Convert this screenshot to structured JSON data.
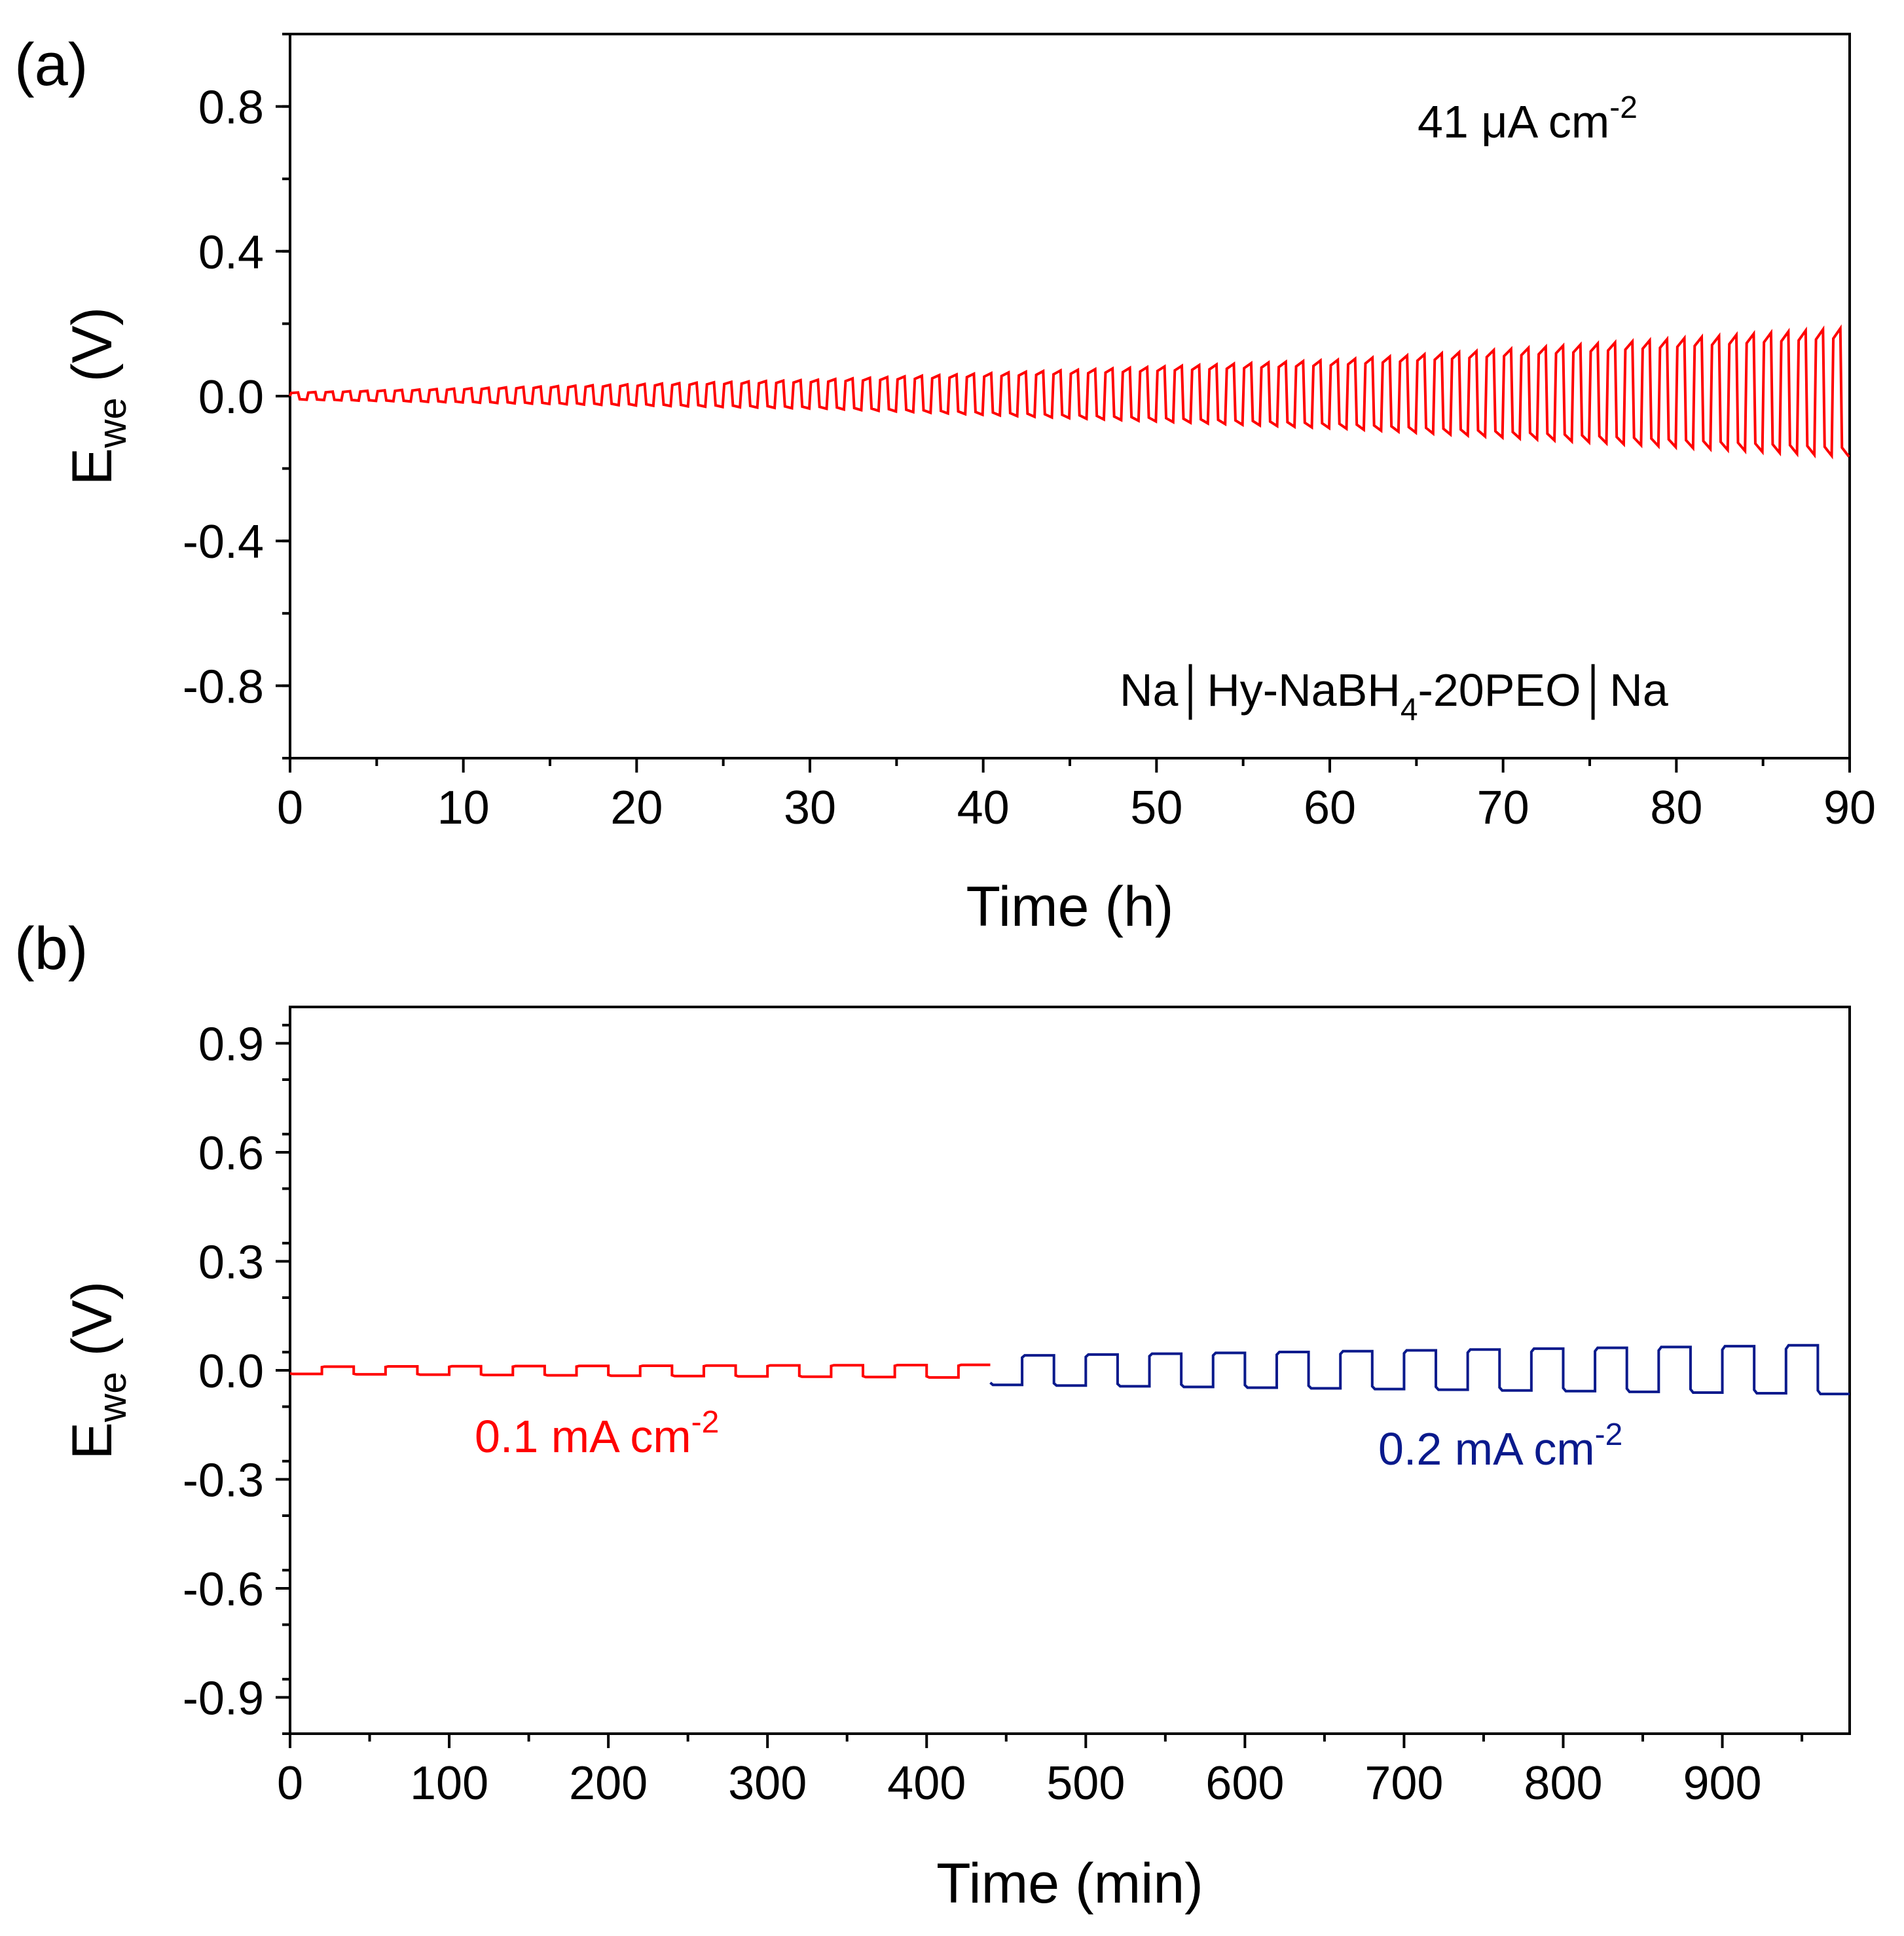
{
  "chart_data": [
    {
      "panel_label": "(a)",
      "type": "line",
      "xlabel": "Time (h)",
      "ylabel": "E",
      "ylabel_sub": "we",
      "ylabel_unit": " (V)",
      "xlim": [
        0,
        90
      ],
      "ylim": [
        -1.0,
        1.0
      ],
      "xticks": [
        0,
        10,
        20,
        30,
        40,
        50,
        60,
        70,
        80,
        90
      ],
      "xtick_labels": [
        "0",
        "10",
        "20",
        "30",
        "40",
        "50",
        "60",
        "70",
        "80",
        "90"
      ],
      "yticks": [
        0.8,
        0.4,
        0.0,
        -0.4,
        -0.8
      ],
      "ytick_labels": [
        "0.8",
        "0.4",
        "0.0",
        "-0.4",
        "-0.8"
      ],
      "annotations": {
        "current_main": "41 μA cm",
        "current_sup": "-2",
        "cell_main": "Na│Hy-NaBH",
        "cell_sub": "4",
        "cell_tail": "-20PEO│Na"
      },
      "series": [
        {
          "name": "41 μA cm-2",
          "color": "#ff0000",
          "cycle_period_h": 1.0,
          "x_start": 0,
          "x_end": 90,
          "amplitude_v_at": [
            {
              "x": 0,
              "upper": 0.01,
              "lower": -0.01
            },
            {
              "x": 30,
              "upper": 0.045,
              "lower": -0.035
            },
            {
              "x": 60,
              "upper": 0.1,
              "lower": -0.09
            },
            {
              "x": 90,
              "upper": 0.19,
              "lower": -0.17
            }
          ]
        }
      ]
    },
    {
      "panel_label": "(b)",
      "type": "line",
      "xlabel": "Time (min)",
      "ylabel": "E",
      "ylabel_sub": "we",
      "ylabel_unit": " (V)",
      "xlim": [
        0,
        980
      ],
      "ylim": [
        -1.0,
        1.0
      ],
      "xticks": [
        0,
        100,
        200,
        300,
        400,
        500,
        600,
        700,
        800,
        900
      ],
      "xtick_labels": [
        "0",
        "100",
        "200",
        "300",
        "400",
        "500",
        "600",
        "700",
        "800",
        "900"
      ],
      "yticks": [
        0.9,
        0.6,
        0.3,
        0.0,
        -0.3,
        -0.6,
        -0.9
      ],
      "ytick_labels": [
        "0.9",
        "0.6",
        "0.3",
        "0.0",
        "-0.3",
        "-0.6",
        "-0.9"
      ],
      "series": [
        {
          "name": "0.1 mA cm-2",
          "label_main": "0.1 mA cm",
          "label_sup": "-2",
          "color": "#ff0000",
          "x_start": 0,
          "x_end": 440,
          "half_period_min": 20,
          "upper_v": [
            0.01,
            0.015
          ],
          "lower_v": [
            -0.01,
            -0.02
          ]
        },
        {
          "name": "0.2 mA cm-2",
          "label_main": "0.2 mA cm",
          "label_sup": "-2",
          "color": "#0a1a8c",
          "x_start": 440,
          "x_end": 980,
          "half_period_min": 20,
          "upper_v": [
            0.04,
            0.07
          ],
          "lower_v": [
            -0.04,
            -0.065
          ]
        }
      ]
    }
  ]
}
